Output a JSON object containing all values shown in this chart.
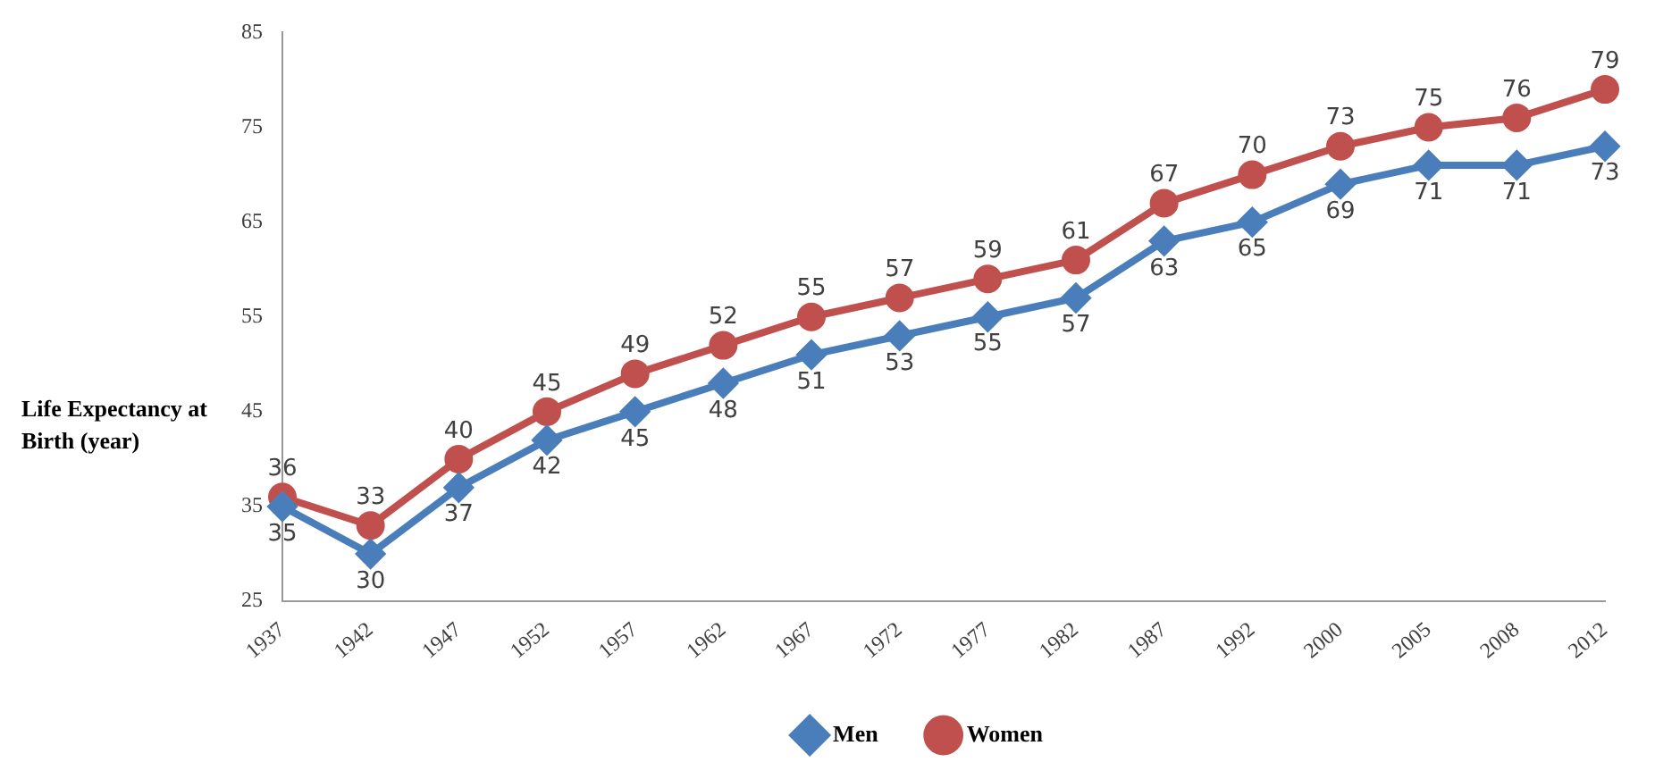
{
  "chart_data": {
    "type": "line",
    "ylabel": "Life Expectancy at Birth (year)",
    "categories": [
      "1937",
      "1942",
      "1947",
      "1952",
      "1957",
      "1962",
      "1967",
      "1972",
      "1977",
      "1982",
      "1987",
      "1992",
      "2000",
      "2005",
      "2008",
      "2012"
    ],
    "series": [
      {
        "name": "Men",
        "color": "#4a7ebb",
        "marker": "diamond",
        "values": [
          35,
          30,
          37,
          42,
          45,
          48,
          51,
          53,
          55,
          57,
          63,
          65,
          69,
          71,
          71,
          73
        ]
      },
      {
        "name": "Women",
        "color": "#c0504d",
        "marker": "circle",
        "values": [
          36,
          33,
          40,
          45,
          49,
          52,
          55,
          57,
          59,
          61,
          67,
          70,
          73,
          75,
          76,
          79
        ]
      }
    ],
    "ylim": [
      25,
      85
    ],
    "yticks": [
      25,
      35,
      45,
      55,
      65,
      75,
      85
    ],
    "grid": false,
    "legend": "bottom",
    "data_labels": true
  }
}
